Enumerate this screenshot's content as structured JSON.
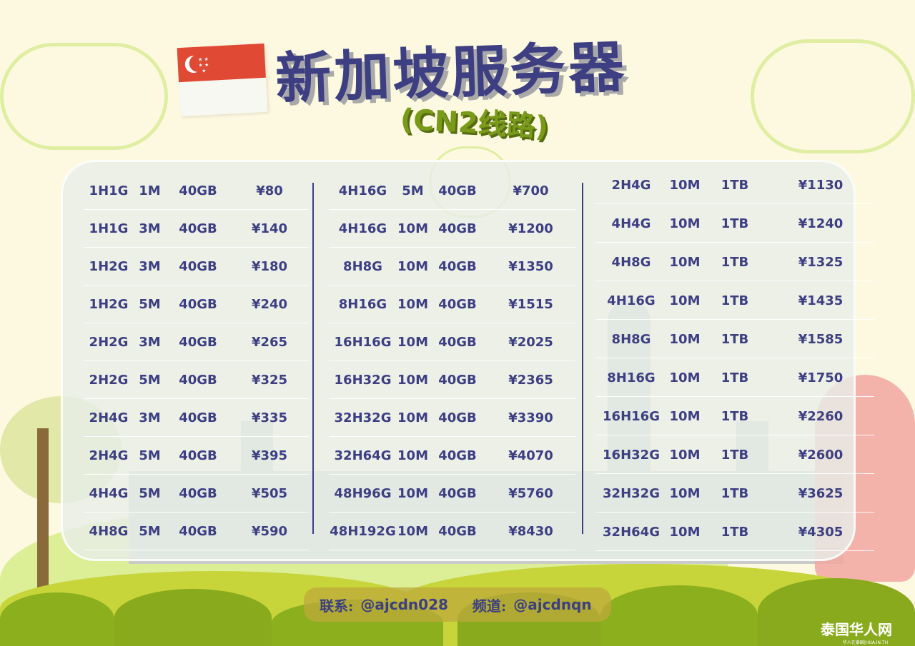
{
  "title": "新加坡服务器",
  "subtitle": "(CN2线路)",
  "colors": {
    "text": "#3d3f82",
    "background": "#fdf9e0",
    "flag_red": "#e04a35",
    "subtitle": "#7a9a1a"
  },
  "columns": [
    [
      [
        "1H1G",
        "1M",
        "40GB",
        "¥80"
      ],
      [
        "1H1G",
        "3M",
        "40GB",
        "¥140"
      ],
      [
        "1H2G",
        "3M",
        "40GB",
        "¥180"
      ],
      [
        "1H2G",
        "5M",
        "40GB",
        "¥240"
      ],
      [
        "2H2G",
        "3M",
        "40GB",
        "¥265"
      ],
      [
        "2H2G",
        "5M",
        "40GB",
        "¥325"
      ],
      [
        "2H4G",
        "3M",
        "40GB",
        "¥335"
      ],
      [
        "2H4G",
        "5M",
        "40GB",
        "¥395"
      ],
      [
        "4H4G",
        "5M",
        "40GB",
        "¥505"
      ],
      [
        "4H8G",
        "5M",
        "40GB",
        "¥590"
      ]
    ],
    [
      [
        "4H16G",
        "5M",
        "40GB",
        "¥700"
      ],
      [
        "4H16G",
        "10M",
        "40GB",
        "¥1200"
      ],
      [
        "8H8G",
        "10M",
        "40GB",
        "¥1350"
      ],
      [
        "8H16G",
        "10M",
        "40GB",
        "¥1515"
      ],
      [
        "16H16G",
        "10M",
        "40GB",
        "¥2025"
      ],
      [
        "16H32G",
        "10M",
        "40GB",
        "¥2365"
      ],
      [
        "32H32G",
        "10M",
        "40GB",
        "¥3390"
      ],
      [
        "32H64G",
        "10M",
        "40GB",
        "¥4070"
      ],
      [
        "48H96G",
        "10M",
        "40GB",
        "¥5760"
      ],
      [
        "48H192G",
        "10M",
        "40GB",
        "¥8430"
      ]
    ],
    [
      [
        "2H4G",
        "10M",
        "1TB",
        "¥1130"
      ],
      [
        "4H4G",
        "10M",
        "1TB",
        "¥1240"
      ],
      [
        "4H8G",
        "10M",
        "1TB",
        "¥1325"
      ],
      [
        "4H16G",
        "10M",
        "1TB",
        "¥1435"
      ],
      [
        "8H8G",
        "10M",
        "1TB",
        "¥1585"
      ],
      [
        "8H16G",
        "10M",
        "1TB",
        "¥1750"
      ],
      [
        "16H16G",
        "10M",
        "1TB",
        "¥2260"
      ],
      [
        "16H32G",
        "10M",
        "1TB",
        "¥2600"
      ],
      [
        "32H32G",
        "10M",
        "1TB",
        "¥3625"
      ],
      [
        "32H64G",
        "10M",
        "1TB",
        "¥4305"
      ]
    ]
  ],
  "contact": {
    "label": "联系:",
    "value": "@ajcdn028",
    "channel_label": "频道:",
    "channel_value": "@ajcdnqn"
  },
  "logo": {
    "name": "泰国华人网",
    "tagline": "华人在泰国|HUA.IN.TH"
  }
}
